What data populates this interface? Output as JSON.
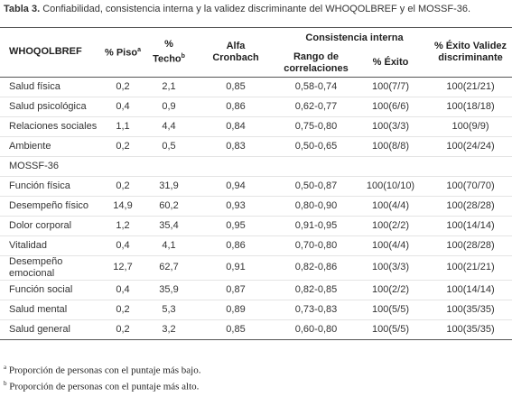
{
  "title": {
    "label": "Tabla 3.",
    "text": "Confiabilidad, consistencia interna y la validez discriminante del WHOQOLBREF y el MOSSF-36."
  },
  "header": {
    "first": "WHOQOLBREF",
    "piso": "% Piso",
    "piso_mark": "a",
    "techo": "% Techo",
    "techo_mark": "b",
    "alfa": "Alfa Cronbach",
    "group": "Consistencia interna",
    "rango": "Rango de correlaciones",
    "exito": "% Éxito",
    "validez": "% Éxito Validez discriminante"
  },
  "rows": [
    [
      "Salud física",
      "0,2",
      "2,1",
      "0,85",
      "0,58-0,74",
      "100(7/7)",
      "100(21/21)"
    ],
    [
      "Salud psicológica",
      "0,4",
      "0,9",
      "0,86",
      "0,62-0,77",
      "100(6/6)",
      "100(18/18)"
    ],
    [
      "Relaciones sociales",
      "1,1",
      "4,4",
      "0,84",
      "0,75-0,80",
      "100(3/3)",
      "100(9/9)"
    ],
    [
      "Ambiente",
      "0,2",
      "0,5",
      "0,83",
      "0,50-0,65",
      "100(8/8)",
      "100(24/24)"
    ],
    [
      "MOSSF-36"
    ],
    [
      "Función física",
      "0,2",
      "31,9",
      "0,94",
      "0,50-0,87",
      "100(10/10)",
      "100(70/70)"
    ],
    [
      "Desempeño físico",
      "14,9",
      "60,2",
      "0,93",
      "0,80-0,90",
      "100(4/4)",
      "100(28/28)"
    ],
    [
      "Dolor corporal",
      "1,2",
      "35,4",
      "0,95",
      "0,91-0,95",
      "100(2/2)",
      "100(14/14)"
    ],
    [
      "Vitalidad",
      "0,4",
      "4,1",
      "0,86",
      "0,70-0,80",
      "100(4/4)",
      "100(28/28)"
    ],
    [
      "Desempeño emocional",
      "12,7",
      "62,7",
      "0,91",
      "0,82-0,86",
      "100(3/3)",
      "100(21/21)"
    ],
    [
      "Función social",
      "0,4",
      "35,9",
      "0,87",
      "0,82-0,85",
      "100(2/2)",
      "100(14/14)"
    ],
    [
      "Salud mental",
      "0,2",
      "5,3",
      "0,89",
      "0,73-0,83",
      "100(5/5)",
      "100(35/35)"
    ],
    [
      "Salud general",
      "0,2",
      "3,2",
      "0,85",
      "0,60-0,80",
      "100(5/5)",
      "100(35/35)"
    ]
  ],
  "footnotes": [
    {
      "mark": "a",
      "text": "Proporción de personas con el puntaje más bajo."
    },
    {
      "mark": "b",
      "text": "Proporción de personas con el puntaje más alto."
    }
  ]
}
